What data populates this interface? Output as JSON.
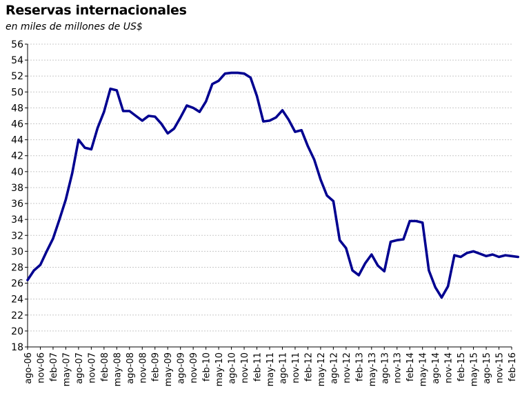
{
  "chart_data": {
    "type": "line",
    "title": "Reservas internacionales",
    "subtitle": "en miles de millones de US$",
    "xlabel": "",
    "ylabel": "",
    "ylim": [
      18,
      56
    ],
    "y_ticks": [
      18,
      20,
      22,
      24,
      26,
      28,
      30,
      32,
      34,
      36,
      38,
      40,
      42,
      44,
      46,
      48,
      50,
      52,
      54,
      56
    ],
    "x_tick_labels": [
      "ago-06",
      "nov-06",
      "feb-07",
      "may-07",
      "ago-07",
      "nov-07",
      "feb-08",
      "may-08",
      "ago-08",
      "nov-08",
      "feb-09",
      "may-09",
      "ago-09",
      "nov-09",
      "feb-10",
      "may-10",
      "ago-10",
      "nov-10",
      "feb-11",
      "may-11",
      "ago-11",
      "nov-11",
      "feb-12",
      "may-12",
      "ago-12",
      "nov-12",
      "feb-13",
      "may-13",
      "ago-13",
      "nov-13",
      "feb-14",
      "may-14",
      "ago-14",
      "nov-14",
      "feb-15",
      "may-15",
      "ago-15",
      "nov-15",
      "feb-16"
    ],
    "grid": true,
    "line_color": "#000090",
    "series": [
      {
        "x": [
          0,
          0.5,
          1,
          1.5,
          2,
          2.5,
          3,
          3.5,
          4,
          4.5,
          5,
          5.5,
          6,
          6.5,
          7,
          7.5,
          8,
          8.5,
          9,
          9.5,
          10,
          10.5,
          11,
          11.5,
          12,
          12.5,
          13,
          13.5,
          14,
          14.5,
          15,
          15.5,
          16,
          16.5,
          17,
          17.5,
          18,
          18.5,
          19,
          19.5,
          20,
          20.5,
          21,
          21.5,
          22,
          22.5,
          23,
          23.5,
          24,
          24.5,
          25,
          25.5,
          26,
          26.5,
          27,
          27.5,
          28,
          28.5,
          29,
          29.5,
          30,
          30.5,
          31,
          31.5,
          32,
          32.5,
          33,
          33.5,
          34,
          34.5,
          35,
          35.5,
          36,
          36.5,
          37,
          37.5,
          38,
          38.5,
          38.3,
          38.4,
          38.6
        ],
        "y": [
          26.4,
          27.6,
          28.3,
          30.0,
          31.6,
          34.0,
          36.5,
          39.8,
          44.0,
          43.0,
          42.8,
          45.5,
          47.5,
          50.4,
          50.2,
          47.6,
          47.6,
          47.0,
          46.4,
          47.0,
          46.9,
          46.0,
          44.8,
          45.4,
          46.8,
          48.3,
          48.0,
          47.5,
          48.8,
          51.0,
          51.4,
          52.3,
          52.4,
          52.4,
          52.3,
          51.8,
          49.5,
          46.3,
          46.4,
          46.8,
          47.7,
          46.5,
          45.0,
          45.2,
          43.2,
          41.5,
          39.0,
          37.0,
          36.3,
          31.4,
          30.4,
          27.6,
          27.0,
          28.5,
          29.6,
          28.2,
          27.5,
          31.2,
          31.4,
          31.5,
          33.8,
          33.8,
          33.6,
          27.6,
          25.5,
          24.2,
          25.6,
          29.5,
          29.3,
          29.8,
          30.0,
          29.7,
          29.4,
          29.6,
          29.3,
          29.5,
          29.4,
          29.3,
          29.8,
          30.0,
          29.4
        ]
      }
    ]
  }
}
